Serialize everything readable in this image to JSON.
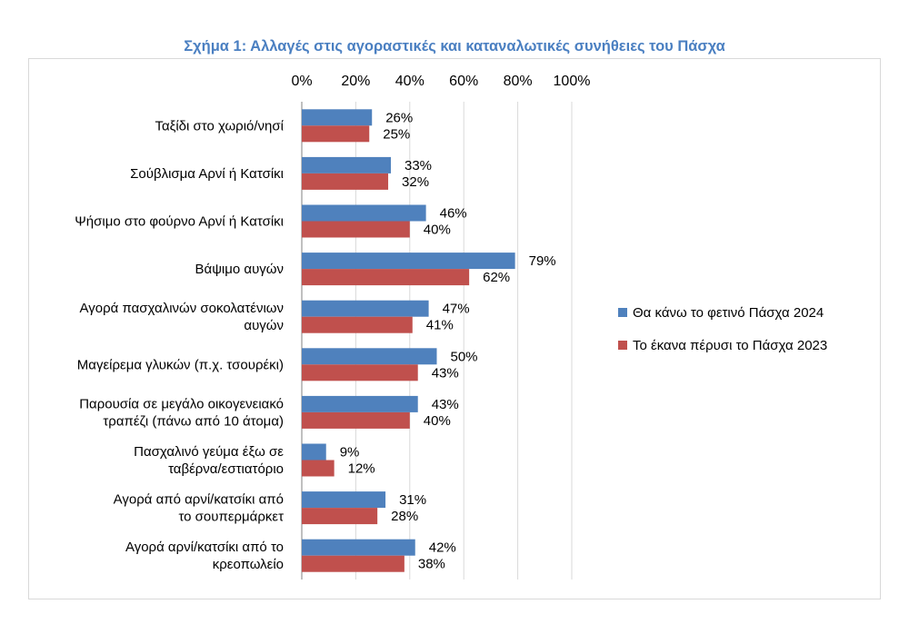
{
  "chart_data": {
    "type": "bar",
    "orientation": "horizontal",
    "title": "Σχήμα 1: Αλλαγές στις αγοραστικές και καταναλωτικές συνήθειες του Πάσχα",
    "xlim": [
      0,
      100
    ],
    "ticks": [
      0,
      20,
      40,
      60,
      80,
      100
    ],
    "tick_labels": [
      "0%",
      "20%",
      "40%",
      "60%",
      "80%",
      "100%"
    ],
    "axis_position": "top",
    "grid": true,
    "legend_position": "right",
    "categories": [
      [
        "Ταξίδι στο χωριό/νησί"
      ],
      [
        "Σούβλισμα Αρνί ή Κατσίκι"
      ],
      [
        "Ψήσιμο στο φούρνο Αρνί ή Κατσίκι"
      ],
      [
        "Βάψιμο αυγών"
      ],
      [
        "Αγορά πασχαλινών σοκολατένιων",
        "αυγών"
      ],
      [
        "Μαγείρεμα γλυκών (π.χ. τσουρέκι)"
      ],
      [
        "Παρουσία σε μεγάλο οικογενειακό",
        "τραπέζι (πάνω από 10 άτομα)"
      ],
      [
        "Πασχαλινό γεύμα έξω σε",
        "ταβέρνα/εστιατόριο"
      ],
      [
        "Αγορά από αρνί/κατσίκι από",
        "το σουπερμάρκετ"
      ],
      [
        "Αγορά αρνί/κατσίκι από το",
        "κρεοπωλείο"
      ]
    ],
    "series": [
      {
        "name": "Θα κάνω το φετινό Πάσχα 2024",
        "color": "#4f81bd",
        "values": [
          26,
          33,
          46,
          79,
          47,
          50,
          43,
          9,
          31,
          42
        ]
      },
      {
        "name": "Το έκανα πέρυσι το Πάσχα 2023",
        "color": "#c0504d",
        "values": [
          25,
          32,
          40,
          62,
          41,
          43,
          40,
          12,
          28,
          38
        ]
      }
    ]
  }
}
